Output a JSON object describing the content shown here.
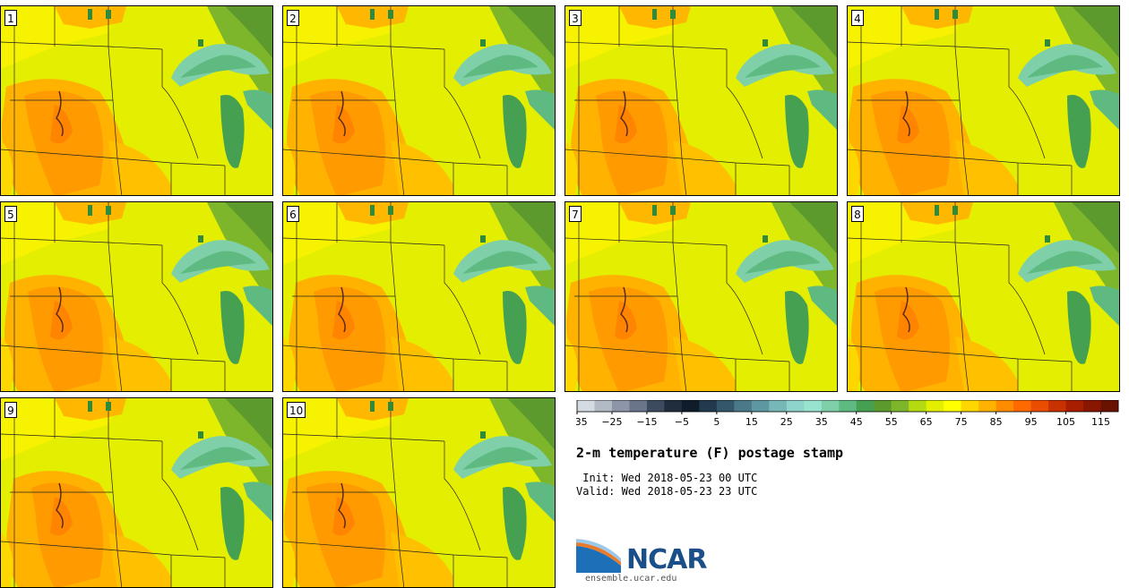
{
  "title": "2-m temperature (F) postage stamp",
  "init": " Init: Wed 2018-05-23 00 UTC",
  "valid": "Valid: Wed 2018-05-23 23 UTC",
  "logo": {
    "name": "NCAR",
    "url": "ensemble.ucar.edu"
  },
  "panels": [
    "1",
    "2",
    "3",
    "4",
    "5",
    "6",
    "7",
    "8",
    "9",
    "10"
  ],
  "colorbar": {
    "ticks": [
      "−35",
      "−25",
      "−15",
      "−5",
      "5",
      "15",
      "25",
      "35",
      "45",
      "55",
      "65",
      "75",
      "85",
      "95",
      "105",
      "115"
    ],
    "colors": [
      "#d5dbe2",
      "#b2bac6",
      "#8d96a8",
      "#6a758a",
      "#3c4b5f",
      "#1f2d3d",
      "#0f1d2b",
      "#223a4e",
      "#35576b",
      "#4a7a87",
      "#5e97a0",
      "#78b7b7",
      "#8ed3cc",
      "#98e2d0",
      "#7fd0a9",
      "#5fba82",
      "#45a151",
      "#5c9a2e",
      "#7db62a",
      "#b4da12",
      "#e3ee00",
      "#ffff00",
      "#ffd700",
      "#ffb300",
      "#ff8c00",
      "#ff6a00",
      "#e84d00",
      "#c83100",
      "#a81f00",
      "#881600",
      "#6a1200"
    ]
  }
}
